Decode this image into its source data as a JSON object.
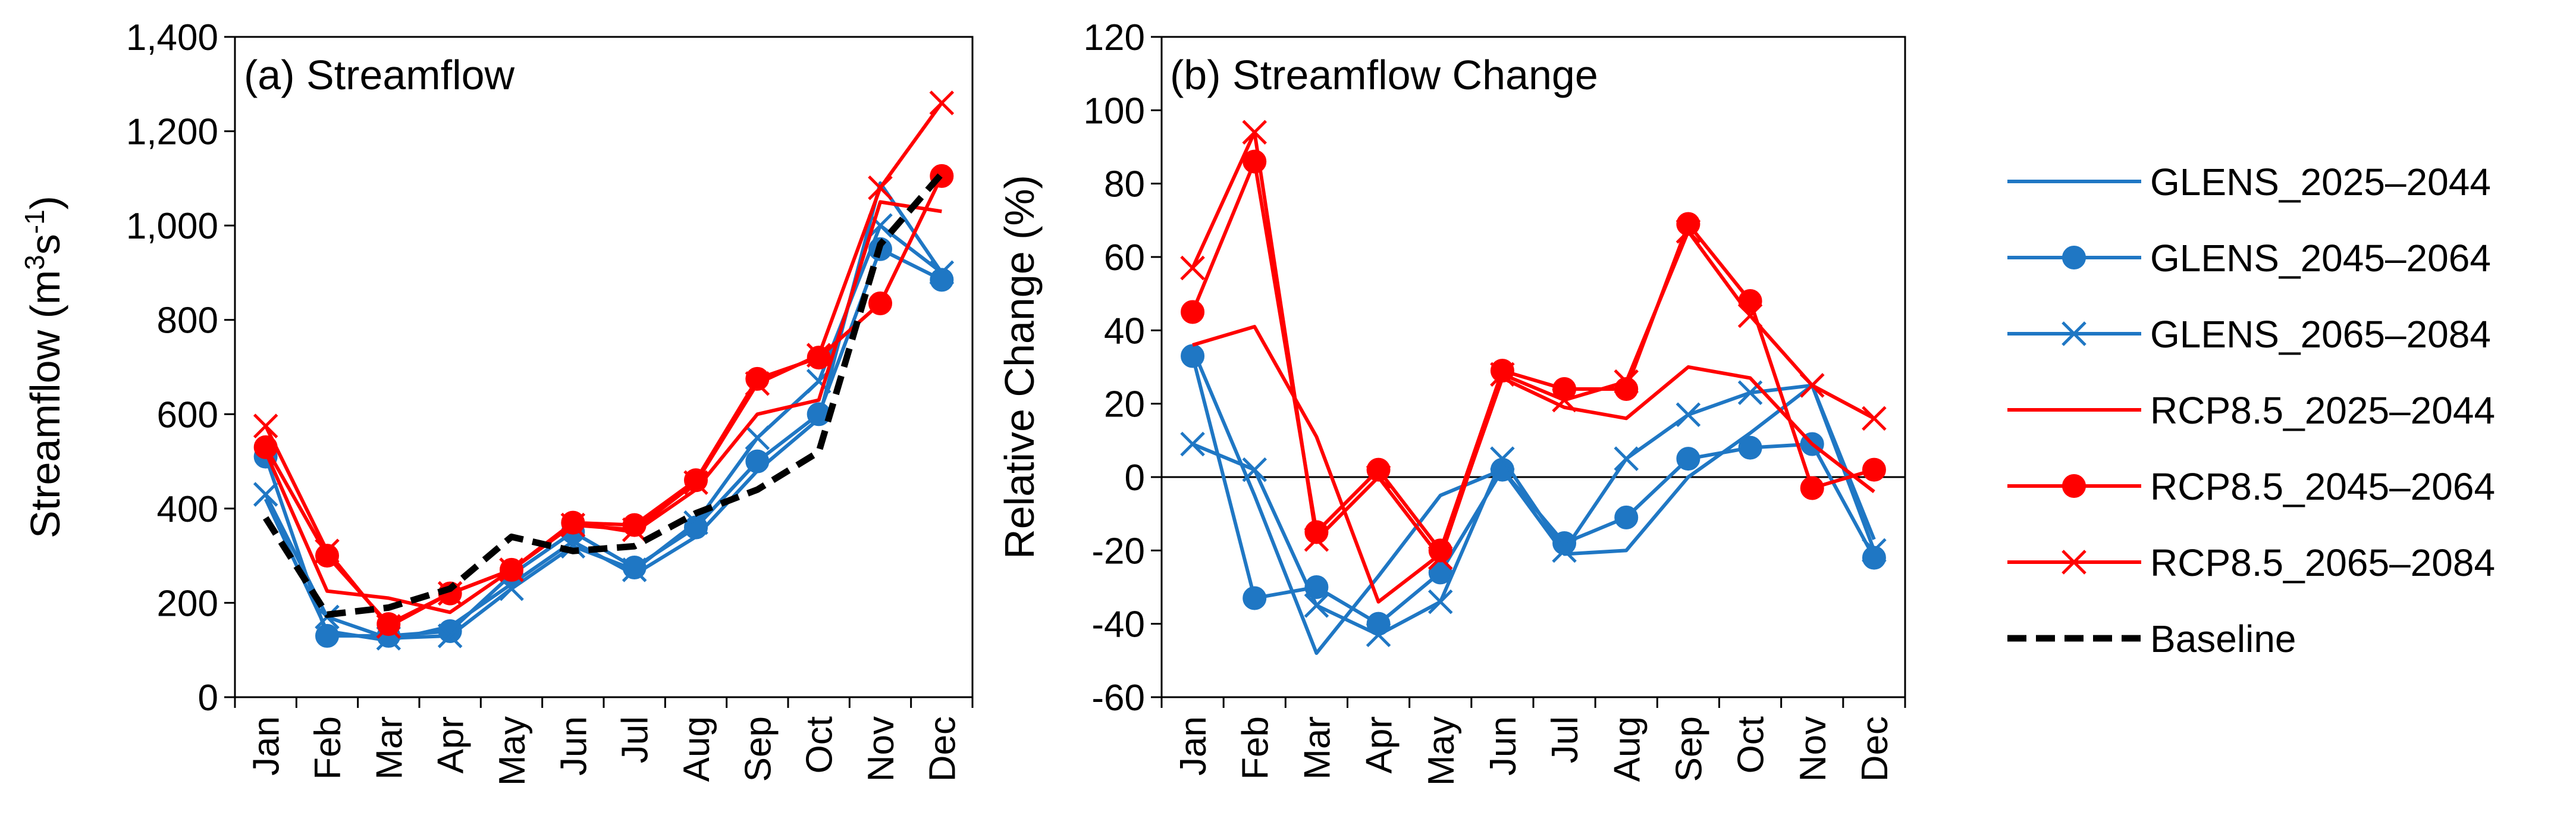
{
  "colors": {
    "glens": "#1f77c4",
    "rcp": "#ff0000",
    "baseline": "#000000"
  },
  "legend": [
    {
      "key": "glens_2025",
      "label": "GLENS_2025–2044",
      "color": "#1f77c4",
      "marker": "none",
      "dash": false
    },
    {
      "key": "glens_2045",
      "label": "GLENS_2045–2064",
      "color": "#1f77c4",
      "marker": "circle",
      "dash": false
    },
    {
      "key": "glens_2065",
      "label": "GLENS_2065–2084",
      "color": "#1f77c4",
      "marker": "x",
      "dash": false
    },
    {
      "key": "rcp_2025",
      "label": "RCP8.5_2025–2044",
      "color": "#ff0000",
      "marker": "none",
      "dash": false
    },
    {
      "key": "rcp_2045",
      "label": "RCP8.5_2045–2064",
      "color": "#ff0000",
      "marker": "circle",
      "dash": false
    },
    {
      "key": "rcp_2065",
      "label": "RCP8.5_2065–2084",
      "color": "#ff0000",
      "marker": "x",
      "dash": false
    },
    {
      "key": "baseline",
      "label": "Baseline",
      "color": "#000000",
      "marker": "none",
      "dash": true
    }
  ],
  "chart_data": [
    {
      "type": "line",
      "title": "(a) Streamflow",
      "xlabel": "",
      "ylabel_main": "Streamflow (m",
      "ylabel_sup1": "3",
      "ylabel_mid": "s",
      "ylabel_sup2": "-1",
      "ylabel_end": ")",
      "categories": [
        "Jan",
        "Feb",
        "Mar",
        "Apr",
        "May",
        "Jun",
        "Jul",
        "Aug",
        "Sep",
        "Oct",
        "Nov",
        "Dec"
      ],
      "ylim": [
        0,
        1400
      ],
      "yticks": [
        0,
        200,
        400,
        600,
        800,
        1000,
        1200,
        1400
      ],
      "ytick_labels": [
        "0",
        "200",
        "400",
        "600",
        "800",
        "1,000",
        "1,200",
        "1,400"
      ],
      "series": [
        {
          "name": "GLENS_2025–2044",
          "key": "glens_2025",
          "values": [
            420,
            140,
            120,
            150,
            240,
            330,
            260,
            340,
            480,
            590,
            1090,
            900
          ]
        },
        {
          "name": "GLENS_2045–2064",
          "key": "glens_2045",
          "values": [
            510,
            130,
            130,
            140,
            260,
            350,
            275,
            360,
            500,
            600,
            950,
            885
          ]
        },
        {
          "name": "GLENS_2065–2084",
          "key": "glens_2065",
          "values": [
            430,
            170,
            125,
            130,
            230,
            320,
            270,
            370,
            550,
            670,
            1000,
            900
          ]
        },
        {
          "name": "RCP8.5_2025–2044",
          "key": "rcp_2025",
          "values": [
            520,
            225,
            210,
            180,
            270,
            370,
            350,
            440,
            600,
            630,
            1050,
            1030
          ]
        },
        {
          "name": "RCP8.5_2045–2064",
          "key": "rcp_2045",
          "values": [
            530,
            300,
            155,
            220,
            270,
            370,
            365,
            460,
            675,
            720,
            835,
            1105
          ]
        },
        {
          "name": "RCP8.5_2065–2084",
          "key": "rcp_2065",
          "values": [
            575,
            310,
            150,
            220,
            270,
            365,
            355,
            455,
            665,
            725,
            1080,
            1260
          ]
        },
        {
          "name": "Baseline",
          "key": "baseline",
          "values": [
            380,
            175,
            190,
            230,
            340,
            310,
            320,
            390,
            440,
            520,
            960,
            1110
          ]
        }
      ]
    },
    {
      "type": "line",
      "title": "(b) Streamflow Change",
      "xlabel": "",
      "ylabel": "Relative Change (%)",
      "categories": [
        "Jan",
        "Feb",
        "Mar",
        "Apr",
        "May",
        "Jun",
        "Jul",
        "Aug",
        "Sep",
        "Oct",
        "Nov",
        "Dec"
      ],
      "ylim": [
        -60,
        120
      ],
      "yticks": [
        -60,
        -40,
        -20,
        0,
        20,
        40,
        60,
        80,
        100,
        120
      ],
      "ytick_labels": [
        "-60",
        "-40",
        "-20",
        "0",
        "20",
        "40",
        "60",
        "80",
        "100",
        "120"
      ],
      "series": [
        {
          "name": "GLENS_2025–2044",
          "key": "glens_2025",
          "values": [
            35,
            -5,
            -48,
            -27,
            -5,
            2,
            -21,
            -20,
            0,
            12,
            25,
            -17
          ]
        },
        {
          "name": "GLENS_2045–2064",
          "key": "glens_2045",
          "values": [
            33,
            -33,
            -30,
            -40,
            -26,
            2,
            -18,
            -11,
            5,
            8,
            9,
            -22
          ]
        },
        {
          "name": "GLENS_2065–2084",
          "key": "glens_2065",
          "values": [
            9,
            2,
            -35,
            -43,
            -34,
            5,
            -20,
            5,
            17,
            23,
            25,
            -20
          ]
        },
        {
          "name": "RCP8.5_2025–2044",
          "key": "rcp_2025",
          "values": [
            36,
            41,
            11,
            -34,
            -21,
            27,
            19,
            16,
            30,
            27,
            9,
            -4
          ]
        },
        {
          "name": "RCP8.5_2045–2064",
          "key": "rcp_2045",
          "values": [
            45,
            86,
            -15,
            2,
            -20,
            29,
            24,
            24,
            69,
            48,
            -3,
            2
          ]
        },
        {
          "name": "RCP8.5_2065–2084",
          "key": "rcp_2065",
          "values": [
            57,
            94,
            -17,
            0,
            -22,
            28,
            21,
            26,
            67,
            44,
            25,
            16
          ]
        }
      ]
    }
  ]
}
